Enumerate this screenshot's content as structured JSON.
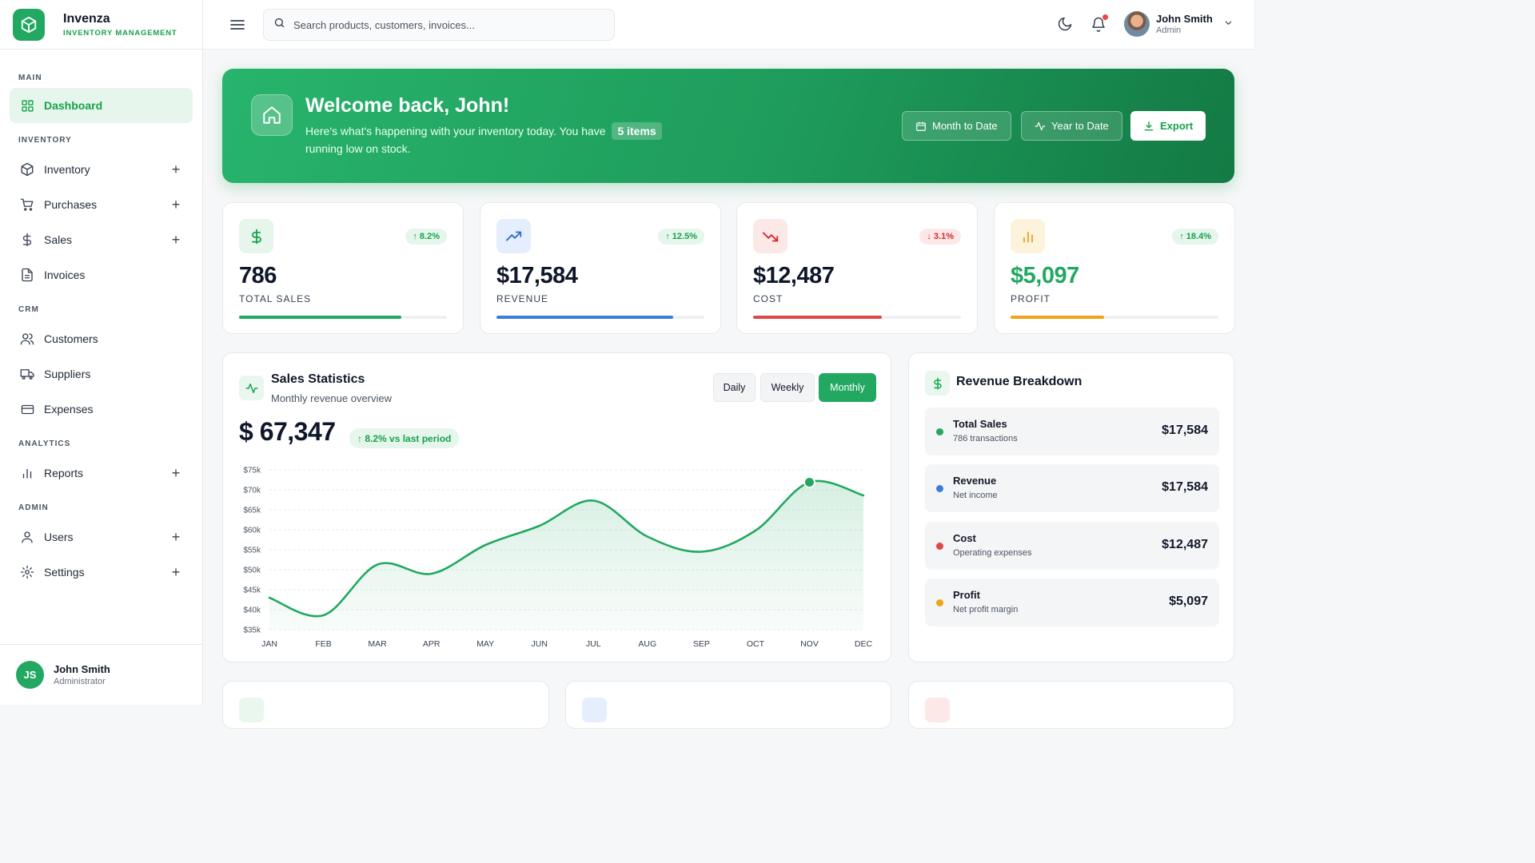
{
  "brand": {
    "name": "Invenza",
    "subtitle": "INVENTORY MANAGEMENT"
  },
  "sidebar": {
    "sections": {
      "main": "MAIN",
      "inventory": "INVENTORY",
      "crm": "CRM",
      "analytics": "ANALYTICS",
      "admin": "ADMIN"
    },
    "items": {
      "dashboard": "Dashboard",
      "inventory": "Inventory",
      "purchases": "Purchases",
      "sales": "Sales",
      "invoices": "Invoices",
      "customers": "Customers",
      "suppliers": "Suppliers",
      "expenses": "Expenses",
      "reports": "Reports",
      "users": "Users",
      "settings": "Settings"
    },
    "expand_symbol": "+",
    "footer": {
      "initials": "JS",
      "name": "John Smith",
      "role": "Administrator"
    }
  },
  "topbar": {
    "search_placeholder": "Search products, customers, invoices...",
    "user": {
      "name": "John Smith",
      "role": "Admin"
    }
  },
  "banner": {
    "title": "Welcome back, John!",
    "subtitle_before": "Here's what's happening with your inventory today. You have",
    "items_badge": "5 items",
    "subtitle_after": "running low on stock.",
    "buttons": {
      "month": "Month to Date",
      "year": "Year to Date",
      "export": "Export"
    }
  },
  "stats": [
    {
      "value": "786",
      "label": "TOTAL SALES",
      "change": "8.2%",
      "direction": "up",
      "progress": 0.78,
      "color": "#22a861",
      "value_color": "#0f172a"
    },
    {
      "value": "$17,584",
      "label": "REVENUE",
      "change": "12.5%",
      "direction": "up",
      "progress": 0.85,
      "color": "#3b7ddd",
      "value_color": "#0f172a"
    },
    {
      "value": "$12,487",
      "label": "COST",
      "change": "3.1%",
      "direction": "down",
      "progress": 0.62,
      "color": "#e04848",
      "value_color": "#0f172a"
    },
    {
      "value": "$5,097",
      "label": "PROFIT",
      "change": "18.4%",
      "direction": "up",
      "progress": 0.45,
      "color": "#f0a417",
      "value_color": "#22a861"
    }
  ],
  "sales": {
    "title": "Sales Statistics",
    "subtitle": "Monthly revenue overview",
    "periods": {
      "daily": "Daily",
      "weekly": "Weekly",
      "monthly": "Monthly"
    },
    "active_period": "Monthly",
    "total": "$ 67,347",
    "change": "8.2% vs last period"
  },
  "chart_data": {
    "type": "area",
    "title": "Sales Statistics",
    "x": [
      "JAN",
      "FEB",
      "MAR",
      "APR",
      "MAY",
      "JUN",
      "JUL",
      "AUG",
      "SEP",
      "OCT",
      "NOV",
      "DEC"
    ],
    "y_ticks": [
      "$75k",
      "$70k",
      "$65k",
      "$60k",
      "$55k",
      "$50k",
      "$45k",
      "$40k",
      "$35k"
    ],
    "ylim": [
      35000,
      75000
    ],
    "series": [
      {
        "values": [
          43000,
          38600,
          51300,
          49000,
          56200,
          61000,
          67300,
          58300,
          54500,
          59800,
          71900,
          68600
        ]
      }
    ],
    "highlight_index": 10,
    "grid": true,
    "color": "#22a861"
  },
  "revenue": {
    "title": "Revenue Breakdown",
    "rows": [
      {
        "name": "Total Sales",
        "desc": "786 transactions",
        "amount": "$17,584",
        "color": "#22a861"
      },
      {
        "name": "Revenue",
        "desc": "Net income",
        "amount": "$17,584",
        "color": "#3b7ddd"
      },
      {
        "name": "Cost",
        "desc": "Operating expenses",
        "amount": "$12,487",
        "color": "#e04848"
      },
      {
        "name": "Profit",
        "desc": "Net profit margin",
        "amount": "$5,097",
        "color": "#f0a417"
      }
    ]
  }
}
